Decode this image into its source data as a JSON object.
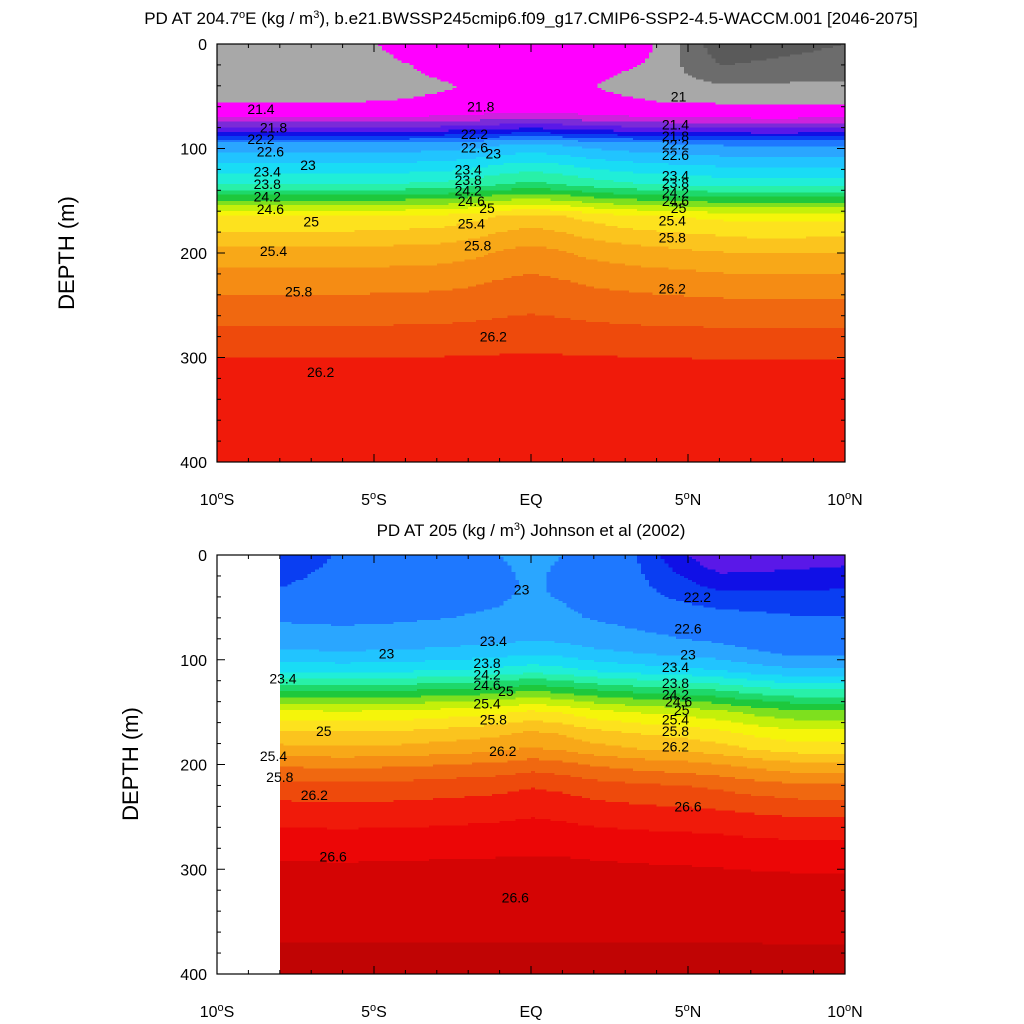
{
  "chart_data": [
    {
      "type": "contour",
      "title_parts": [
        "PD AT 204.7",
        "o",
        "E (kg / m",
        "3",
        "), b.e21.BWSSP245cmip6.f09_g17.CMIP6-SSP2-4.5-WACCM.001 [2046-2075]"
      ],
      "ylabel": "DEPTH (m)",
      "xlim": [
        -10,
        10
      ],
      "ylim": [
        0,
        400
      ],
      "data_xrange": [
        -10,
        10
      ],
      "x_ticks": [
        -10,
        -5,
        0,
        5,
        10
      ],
      "x_tick_labels": [
        [
          "10",
          "o",
          "S"
        ],
        [
          "5",
          "o",
          "S"
        ],
        [
          "EQ",
          "",
          ""
        ],
        [
          "5",
          "o",
          "N"
        ],
        [
          "10",
          "o",
          "N"
        ]
      ],
      "y_ticks": [
        0,
        100,
        200,
        300,
        400
      ],
      "y_tick_labels": [
        "0",
        "100",
        "200",
        "300",
        "400"
      ],
      "base_profile": {
        "depths": [
          0,
          20,
          40,
          55,
          70,
          80,
          88,
          95,
          105,
          115,
          125,
          135,
          145,
          155,
          165,
          180,
          195,
          215,
          240,
          270,
          300,
          350,
          400
        ],
        "values": [
          21.0,
          21.0,
          21.2,
          21.4,
          21.8,
          22.2,
          22.6,
          23.0,
          23.2,
          23.4,
          23.6,
          23.8,
          24.2,
          24.6,
          25.0,
          25.2,
          25.4,
          25.6,
          25.8,
          26.0,
          26.2,
          26.3,
          26.35
        ]
      },
      "surface_profile": {
        "lats": [
          -10,
          -6.5,
          -3.3,
          -1.5,
          0,
          1.5,
          3.5,
          5,
          6,
          10
        ],
        "values": [
          21.0,
          21.1,
          21.7,
          21.8,
          21.8,
          21.8,
          21.6,
          20.9,
          20.7,
          20.8
        ]
      },
      "bulge_lats": [
        -10,
        -7.5,
        -5,
        -3,
        -2,
        -1,
        0,
        1,
        2,
        3.5,
        5,
        6,
        7,
        8.5,
        10
      ],
      "bulge_values": [
        0,
        0,
        0.02,
        0.06,
        0.12,
        0.22,
        0.28,
        0.22,
        0.12,
        0.03,
        -0.02,
        -0.05,
        -0.08,
        -0.08,
        -0.06
      ],
      "contour_labels": [
        {
          "text": "21.4",
          "lat": -8.6,
          "depth": 62
        },
        {
          "text": "21.8",
          "lat": -8.2,
          "depth": 80
        },
        {
          "text": "22.2",
          "lat": -8.6,
          "depth": 91
        },
        {
          "text": "22.6",
          "lat": -8.3,
          "depth": 103
        },
        {
          "text": "23",
          "lat": -7.1,
          "depth": 116
        },
        {
          "text": "23.4",
          "lat": -8.4,
          "depth": 122
        },
        {
          "text": "23.8",
          "lat": -8.4,
          "depth": 134
        },
        {
          "text": "24.2",
          "lat": -8.4,
          "depth": 146
        },
        {
          "text": "24.6",
          "lat": -8.3,
          "depth": 158
        },
        {
          "text": "25",
          "lat": -7.0,
          "depth": 170
        },
        {
          "text": "25.4",
          "lat": -8.2,
          "depth": 198
        },
        {
          "text": "25.8",
          "lat": -7.4,
          "depth": 237
        },
        {
          "text": "26.2",
          "lat": -6.7,
          "depth": 314
        },
        {
          "text": "21.8",
          "lat": -1.6,
          "depth": 60
        },
        {
          "text": "22.2",
          "lat": -1.8,
          "depth": 86
        },
        {
          "text": "22.6",
          "lat": -1.8,
          "depth": 99
        },
        {
          "text": "23",
          "lat": -1.2,
          "depth": 105
        },
        {
          "text": "23.4",
          "lat": -2.0,
          "depth": 120
        },
        {
          "text": "23.8",
          "lat": -2.0,
          "depth": 130
        },
        {
          "text": "24.2",
          "lat": -2.0,
          "depth": 140
        },
        {
          "text": "24.6",
          "lat": -1.9,
          "depth": 150
        },
        {
          "text": "25",
          "lat": -1.4,
          "depth": 157
        },
        {
          "text": "25.4",
          "lat": -1.9,
          "depth": 172
        },
        {
          "text": "25.8",
          "lat": -1.7,
          "depth": 193
        },
        {
          "text": "26.2",
          "lat": -1.2,
          "depth": 280
        },
        {
          "text": "21",
          "lat": 4.7,
          "depth": 50
        },
        {
          "text": "21.4",
          "lat": 4.6,
          "depth": 77
        },
        {
          "text": "21.8",
          "lat": 4.6,
          "depth": 88
        },
        {
          "text": "22.2",
          "lat": 4.6,
          "depth": 96
        },
        {
          "text": "22.6",
          "lat": 4.6,
          "depth": 106
        },
        {
          "text": "23.4",
          "lat": 4.6,
          "depth": 126
        },
        {
          "text": "23.8",
          "lat": 4.6,
          "depth": 133
        },
        {
          "text": "24.2",
          "lat": 4.6,
          "depth": 142
        },
        {
          "text": "24.6",
          "lat": 4.6,
          "depth": 150
        },
        {
          "text": "25",
          "lat": 4.7,
          "depth": 157
        },
        {
          "text": "25.4",
          "lat": 4.5,
          "depth": 169
        },
        {
          "text": "25.8",
          "lat": 4.5,
          "depth": 185
        },
        {
          "text": "26.2",
          "lat": 4.5,
          "depth": 234
        }
      ]
    },
    {
      "type": "contour",
      "title_parts": [
        "PD AT 205 (kg / m",
        "3",
        ") Johnson et al (2002)"
      ],
      "ylabel": "DEPTH (m)",
      "xlim": [
        -10,
        10
      ],
      "ylim": [
        0,
        400
      ],
      "data_xrange": [
        -8,
        10
      ],
      "x_ticks": [
        -10,
        -5,
        0,
        5,
        10
      ],
      "x_tick_labels": [
        [
          "10",
          "o",
          "S"
        ],
        [
          "5",
          "o",
          "S"
        ],
        [
          "EQ",
          "",
          ""
        ],
        [
          "5",
          "o",
          "N"
        ],
        [
          "10",
          "o",
          "N"
        ]
      ],
      "y_ticks": [
        0,
        100,
        200,
        300,
        400
      ],
      "y_tick_labels": [
        "0",
        "100",
        "200",
        "300",
        "400"
      ],
      "base_profile": {
        "depths": [
          0,
          30,
          60,
          80,
          95,
          110,
          125,
          140,
          150,
          160,
          170,
          185,
          200,
          220,
          250,
          290,
          330,
          370,
          400
        ],
        "values": [
          22.9,
          22.95,
          23.0,
          23.1,
          23.3,
          23.6,
          24.1,
          24.6,
          24.9,
          25.1,
          25.3,
          25.5,
          25.8,
          26.1,
          26.35,
          26.6,
          26.7,
          26.8,
          26.85
        ]
      },
      "surface_profile": {
        "lats": [
          -8,
          -7,
          -5,
          -3,
          -1,
          0,
          1,
          3,
          4.5,
          6,
          8,
          10
        ],
        "values": [
          22.65,
          22.75,
          22.9,
          22.95,
          23.0,
          23.05,
          23.0,
          22.9,
          22.5,
          22.2,
          22.25,
          22.3
        ]
      },
      "bulge_lats": [
        -8,
        -6,
        -4,
        -2,
        -1,
        0,
        1,
        2,
        3.5,
        5,
        6,
        7,
        8.5,
        10
      ],
      "bulge_values": [
        -0.05,
        -0.08,
        -0.05,
        0.02,
        0.06,
        0.14,
        0.08,
        -0.03,
        -0.12,
        -0.18,
        -0.25,
        -0.35,
        -0.45,
        -0.45
      ],
      "contour_labels": [
        {
          "text": "23",
          "lat": -0.3,
          "depth": 33
        },
        {
          "text": "22.2",
          "lat": 5.3,
          "depth": 40
        },
        {
          "text": "22.6",
          "lat": 5.0,
          "depth": 70
        },
        {
          "text": "23",
          "lat": 5.0,
          "depth": 95
        },
        {
          "text": "23",
          "lat": -4.6,
          "depth": 94
        },
        {
          "text": "23.4",
          "lat": -1.2,
          "depth": 82
        },
        {
          "text": "23.4",
          "lat": -7.9,
          "depth": 118
        },
        {
          "text": "23.8",
          "lat": -1.4,
          "depth": 103
        },
        {
          "text": "24.2",
          "lat": -1.4,
          "depth": 114
        },
        {
          "text": "24.6",
          "lat": -1.4,
          "depth": 124
        },
        {
          "text": "25",
          "lat": -0.8,
          "depth": 130
        },
        {
          "text": "25.4",
          "lat": -1.4,
          "depth": 142
        },
        {
          "text": "25.8",
          "lat": -1.2,
          "depth": 157
        },
        {
          "text": "26.2",
          "lat": -0.9,
          "depth": 187
        },
        {
          "text": "23.4",
          "lat": 4.6,
          "depth": 107
        },
        {
          "text": "23.8",
          "lat": 4.6,
          "depth": 122
        },
        {
          "text": "24.2",
          "lat": 4.6,
          "depth": 133
        },
        {
          "text": "24.6",
          "lat": 4.7,
          "depth": 140
        },
        {
          "text": "25",
          "lat": 4.8,
          "depth": 148
        },
        {
          "text": "25.4",
          "lat": 4.6,
          "depth": 157
        },
        {
          "text": "25.8",
          "lat": 4.6,
          "depth": 168
        },
        {
          "text": "26.2",
          "lat": 4.6,
          "depth": 183
        },
        {
          "text": "25",
          "lat": -6.6,
          "depth": 168
        },
        {
          "text": "25.4",
          "lat": -8.2,
          "depth": 192
        },
        {
          "text": "25.8",
          "lat": -8.0,
          "depth": 212
        },
        {
          "text": "26.2",
          "lat": -6.9,
          "depth": 229
        },
        {
          "text": "26.6",
          "lat": -6.3,
          "depth": 288
        },
        {
          "text": "26.6",
          "lat": -0.5,
          "depth": 327
        },
        {
          "text": "26.6",
          "lat": 5.0,
          "depth": 240
        }
      ]
    }
  ]
}
